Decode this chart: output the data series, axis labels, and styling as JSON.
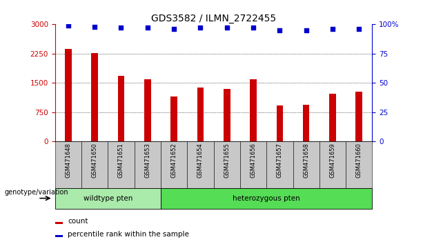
{
  "title": "GDS3582 / ILMN_2722455",
  "categories": [
    "GSM471648",
    "GSM471650",
    "GSM471651",
    "GSM471653",
    "GSM471652",
    "GSM471654",
    "GSM471655",
    "GSM471656",
    "GSM471657",
    "GSM471658",
    "GSM471659",
    "GSM471660"
  ],
  "bar_values": [
    2380,
    2270,
    1680,
    1600,
    1150,
    1380,
    1350,
    1600,
    920,
    940,
    1220,
    1280
  ],
  "bar_color": "#cc0000",
  "percentile_values": [
    99,
    98,
    97,
    97,
    96,
    97,
    97,
    97,
    95,
    95,
    96,
    96
  ],
  "percentile_color": "#0000cc",
  "ylim_left": [
    0,
    3000
  ],
  "ylim_right": [
    0,
    100
  ],
  "yticks_left": [
    0,
    750,
    1500,
    2250,
    3000
  ],
  "yticks_right": [
    0,
    25,
    50,
    75,
    100
  ],
  "wildtype_label": "wildtype pten",
  "heterozygous_label": "heterozygous pten",
  "wildtype_count": 4,
  "genotype_label": "genotype/variation",
  "legend_count_label": "count",
  "legend_percentile_label": "percentile rank within the sample",
  "wildtype_color": "#aaeaaa",
  "heterozygous_color": "#55dd55",
  "tick_bg_color": "#c8c8c8",
  "grid_color": "#000000",
  "title_fontsize": 10,
  "tick_fontsize": 7.5
}
